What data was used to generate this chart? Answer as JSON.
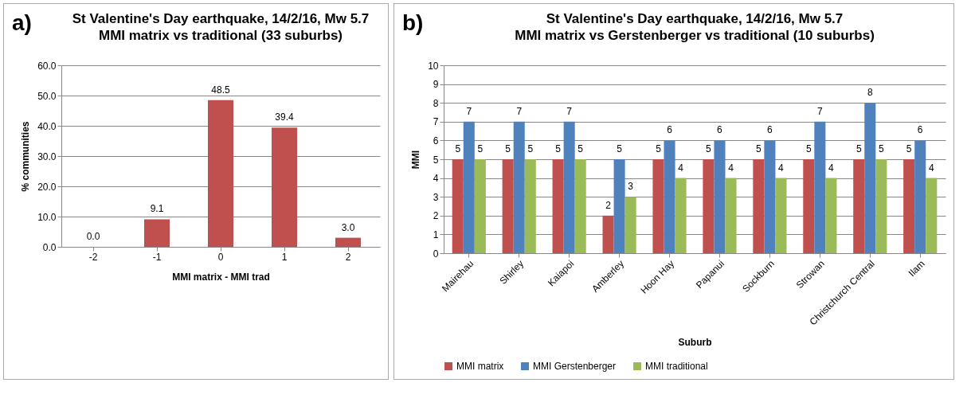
{
  "chart_data": [
    {
      "type": "bar",
      "title": "St Valentine's Day earthquake, 14/2/16, Mw 5.7",
      "subtitle": "MMI matrix vs traditional (33 suburbs)",
      "annotations": [
        "a)"
      ],
      "xlabel": "MMI matrix - MMI trad",
      "ylabel": "% communities",
      "categories": [
        "-2",
        "-1",
        "0",
        "1",
        "2"
      ],
      "values": [
        0,
        9.1,
        48.5,
        39.4,
        3.0
      ],
      "color": "#c0504d",
      "value_labels": [
        "0.0",
        "9.1",
        "48.5",
        "39.4",
        "3.0"
      ],
      "ylim": [
        0,
        60
      ],
      "yticks": [
        {
          "value": 0,
          "label": "0.0"
        },
        {
          "value": 10,
          "label": "10.0"
        },
        {
          "value": 20,
          "label": "20.0"
        },
        {
          "value": 30,
          "label": "30.0"
        },
        {
          "value": 40,
          "label": "40.0"
        },
        {
          "value": 50,
          "label": "50.0"
        },
        {
          "value": 60,
          "label": "60.0"
        }
      ],
      "grid": "y"
    },
    {
      "type": "bar",
      "title": "St Valentine's Day earthquake, 14/2/16, Mw 5.7",
      "subtitle": "MMI matrix vs Gerstenberger vs traditional (10 suburbs)",
      "annotations": [
        "b)"
      ],
      "xlabel": "Suburb",
      "ylabel": "MMI",
      "categories": [
        "Mairehau",
        "Shirley",
        "Kaiapoi",
        "Amberley",
        "Hoon Hay",
        "Papanui",
        "Sockburn",
        "Strowan",
        "Christchurch Central",
        "Ilam"
      ],
      "series": [
        {
          "name": "MMI matrix",
          "color": "#c0504d",
          "values": [
            5,
            5,
            5,
            2,
            5,
            5,
            5,
            5,
            5,
            5
          ]
        },
        {
          "name": "MMI Gerstenberger",
          "color": "#4f81bd",
          "values": [
            7,
            7,
            7,
            5,
            6,
            6,
            6,
            7,
            8,
            6
          ]
        },
        {
          "name": "MMI traditional",
          "color": "#9bbb59",
          "values": [
            5,
            5,
            5,
            3,
            4,
            4,
            4,
            4,
            5,
            4
          ]
        }
      ],
      "data_labels": true,
      "ylim": [
        0,
        10
      ],
      "yticks": [
        0,
        1,
        2,
        3,
        4,
        5,
        6,
        7,
        8,
        9,
        10
      ],
      "grid": "y",
      "legend": "bottom"
    }
  ]
}
